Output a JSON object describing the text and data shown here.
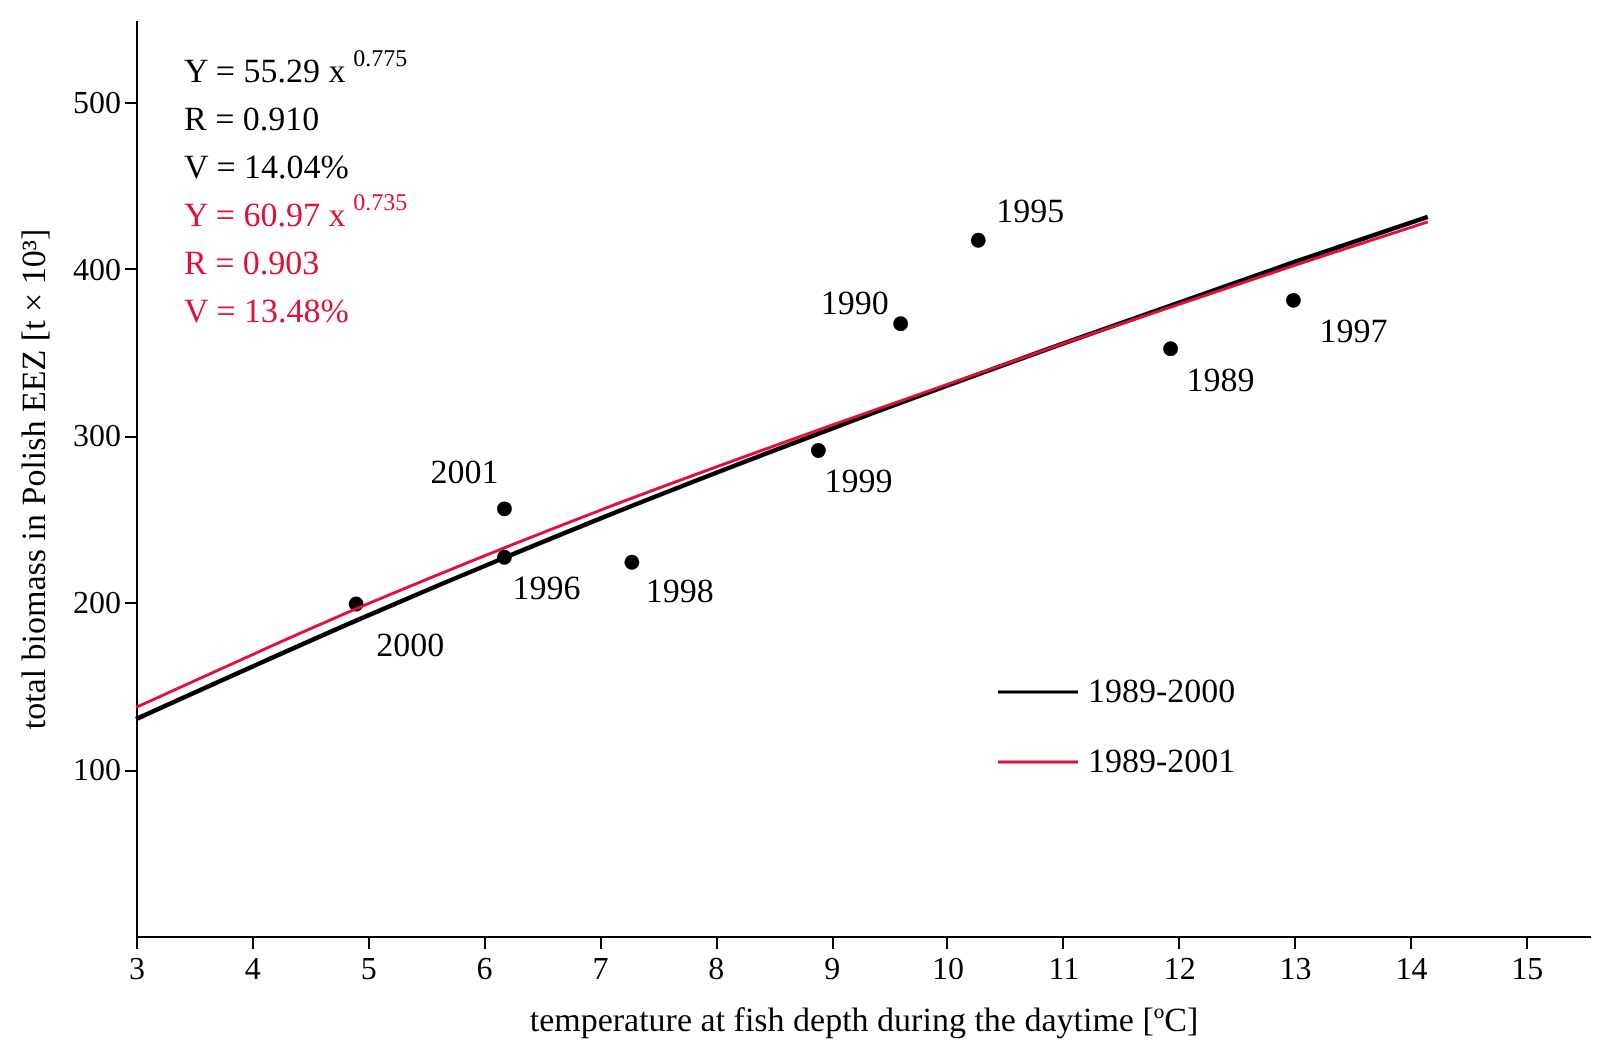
{
  "chart_data": {
    "type": "scatter",
    "xlabel": "temperature at fish depth during the daytime [ºC]",
    "ylabel": "total biomass in Polish EEZ [t × 10³]",
    "xlim": [
      3,
      15.55
    ],
    "ylim": [
      0,
      549
    ],
    "xticks": [
      3,
      4,
      5,
      6,
      7,
      8,
      9,
      10,
      11,
      12,
      13,
      14,
      15
    ],
    "yticks": [
      100,
      200,
      300,
      400,
      500
    ],
    "grid": false,
    "legend": "right",
    "series": [
      {
        "color": "#000000",
        "x": [
          11.93,
          9.6,
          10.27,
          6.18,
          12.99,
          7.28,
          8.89,
          4.9,
          6.18
        ],
        "values": [
          352,
          367,
          417,
          227,
          381,
          224,
          291,
          199,
          256
        ]
      },
      {
        "type": "line",
        "name": "1989-2000",
        "color": "#000000",
        "x": [
          3,
          5,
          7,
          9,
          11,
          13,
          14.15
        ],
        "values": [
          130,
          192,
          250,
          304,
          355,
          404,
          431
        ]
      },
      {
        "type": "line",
        "name": "1989-2001",
        "color": "#e0103a",
        "x": [
          3,
          5,
          7,
          9,
          11,
          13,
          14.15
        ],
        "values": [
          137,
          199,
          255,
          306,
          355,
          402,
          428
        ]
      }
    ],
    "annotations": [
      "Y = 55.29 x$^{0.775}$",
      "R = 0.910",
      "V = 14.04%",
      "Y = 60.97 x$^{0.735}$",
      "R = 0.903",
      "V = 13.48%",
      {
        "text": "1989",
        "x": 11.93,
        "y": 352
      },
      {
        "text": "1990",
        "x": 9.6,
        "y": 367
      },
      {
        "text": "1995",
        "x": 10.27,
        "y": 417
      },
      {
        "text": "1996",
        "x": 6.18,
        "y": 227
      },
      {
        "text": "1997",
        "x": 12.99,
        "y": 381
      },
      {
        "text": "1998",
        "x": 7.28,
        "y": 224
      },
      {
        "text": "1999",
        "x": 8.89,
        "y": 291
      },
      {
        "text": "2000",
        "x": 4.9,
        "y": 199
      },
      {
        "text": "2001",
        "x": 6.18,
        "y": 256
      }
    ]
  }
}
